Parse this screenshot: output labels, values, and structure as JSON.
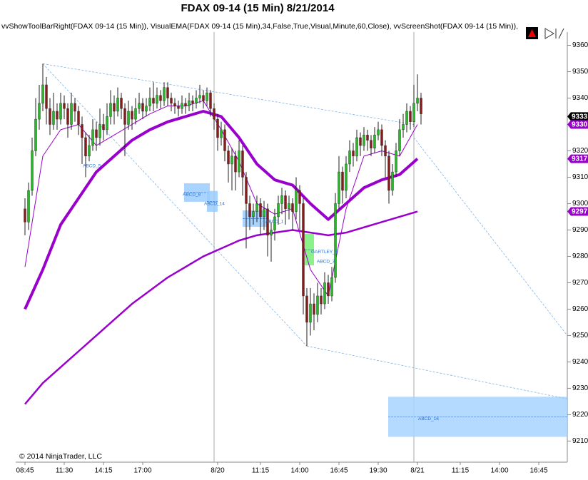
{
  "chart_data": {
    "type": "candlestick",
    "title": "FDAX 09-14 (15 Min)  8/21/2014",
    "subtitle": "vvShowToolBarRight(FDAX 09-14 (15 Min)), VisualEMA(FDAX 09-14 (15 Min),34,False,True,Visual,Minute,60,Close), vvScreenShot(FDAX 09-14 (15 Min)),",
    "footer": "© 2014 NinjaTrader, LLC",
    "up_color": "#22bb22",
    "down_color": "#8b1a1a",
    "xlim": [
      -2.6,
      152
    ],
    "ylim": [
      9202,
      9365
    ],
    "yticks": [
      9210,
      9220,
      9230,
      9240,
      9250,
      9260,
      9270,
      9280,
      9290,
      9300,
      9310,
      9320,
      9330,
      9340,
      9350,
      9360
    ],
    "xticks": [
      {
        "value": 0,
        "label": "08:45"
      },
      {
        "value": 11,
        "label": "11:30"
      },
      {
        "value": 22,
        "label": "14:15"
      },
      {
        "value": 33,
        "label": "17:00"
      },
      {
        "value": 54,
        "label": "8/20"
      },
      {
        "value": 66,
        "label": "11:15"
      },
      {
        "value": 77,
        "label": "14:00"
      },
      {
        "value": 88,
        "label": "16:45"
      },
      {
        "value": 99,
        "label": "19:30"
      },
      {
        "value": 110,
        "label": "8/21"
      },
      {
        "value": 122,
        "label": "11:15"
      },
      {
        "value": 133,
        "label": "14:00"
      },
      {
        "value": 144,
        "label": "16:45"
      }
    ],
    "session_breaks": [
      53,
      109
    ],
    "ohlc": [
      [
        9298,
        9302,
        9288,
        9293
      ],
      [
        9293,
        9308,
        9290,
        9305
      ],
      [
        9305,
        9325,
        9303,
        9320
      ],
      [
        9320,
        9340,
        9318,
        9332
      ],
      [
        9332,
        9345,
        9328,
        9338
      ],
      [
        9338,
        9353,
        9335,
        9345
      ],
      [
        9345,
        9348,
        9330,
        9336
      ],
      [
        9336,
        9340,
        9326,
        9330
      ],
      [
        9330,
        9342,
        9328,
        9335
      ],
      [
        9335,
        9338,
        9328,
        9332
      ],
      [
        9332,
        9342,
        9330,
        9338
      ],
      [
        9338,
        9341,
        9332,
        9336
      ],
      [
        9336,
        9338,
        9325,
        9330
      ],
      [
        9330,
        9342,
        9328,
        9338
      ],
      [
        9338,
        9340,
        9331,
        9335
      ],
      [
        9335,
        9337,
        9326,
        9330
      ],
      [
        9330,
        9333,
        9315,
        9325
      ],
      [
        9325,
        9327,
        9310,
        9318
      ],
      [
        9318,
        9326,
        9316,
        9322
      ],
      [
        9322,
        9332,
        9320,
        9328
      ],
      [
        9328,
        9331,
        9320,
        9325
      ],
      [
        9325,
        9336,
        9322,
        9330
      ],
      [
        9330,
        9334,
        9324,
        9328
      ],
      [
        9328,
        9338,
        9326,
        9333
      ],
      [
        9333,
        9343,
        9330,
        9338
      ],
      [
        9338,
        9341,
        9330,
        9335
      ],
      [
        9335,
        9344,
        9333,
        9340
      ],
      [
        9340,
        9342,
        9332,
        9336
      ],
      [
        9336,
        9338,
        9318,
        9330
      ],
      [
        9330,
        9339,
        9328,
        9335
      ],
      [
        9335,
        9337,
        9328,
        9332
      ],
      [
        9332,
        9340,
        9330,
        9336
      ],
      [
        9336,
        9342,
        9334,
        9338
      ],
      [
        9338,
        9340,
        9332,
        9335
      ],
      [
        9335,
        9340,
        9333,
        9337
      ],
      [
        9337,
        9344,
        9335,
        9340
      ],
      [
        9340,
        9346,
        9335,
        9338
      ],
      [
        9338,
        9344,
        9336,
        9341
      ],
      [
        9341,
        9343,
        9336,
        9339
      ],
      [
        9339,
        9346,
        9337,
        9344
      ],
      [
        9344,
        9346,
        9337,
        9340
      ],
      [
        9340,
        9342,
        9335,
        9338
      ],
      [
        9338,
        9340,
        9334,
        9337
      ],
      [
        9337,
        9339,
        9333,
        9336
      ],
      [
        9336,
        9341,
        9334,
        9338
      ],
      [
        9338,
        9340,
        9334,
        9337
      ],
      [
        9337,
        9342,
        9335,
        9339
      ],
      [
        9339,
        9341,
        9335,
        9338
      ],
      [
        9338,
        9343,
        9336,
        9340
      ],
      [
        9340,
        9345,
        9338,
        9341
      ],
      [
        9341,
        9343,
        9336,
        9339
      ],
      [
        9339,
        9344,
        9337,
        9342
      ],
      [
        9342,
        9343,
        9333,
        9336
      ],
      [
        9336,
        9338,
        9328,
        9332
      ],
      [
        9332,
        9334,
        9320,
        9325
      ],
      [
        9325,
        9331,
        9322,
        9328
      ],
      [
        9328,
        9330,
        9316,
        9320
      ],
      [
        9320,
        9322,
        9308,
        9315
      ],
      [
        9315,
        9321,
        9305,
        9318
      ],
      [
        9318,
        9320,
        9305,
        9312
      ],
      [
        9312,
        9324,
        9310,
        9320
      ],
      [
        9320,
        9322,
        9303,
        9310
      ],
      [
        9310,
        9312,
        9283,
        9300
      ],
      [
        9300,
        9303,
        9290,
        9295
      ],
      [
        9295,
        9300,
        9292,
        9297
      ],
      [
        9297,
        9303,
        9293,
        9300
      ],
      [
        9300,
        9302,
        9288,
        9295
      ],
      [
        9295,
        9301,
        9290,
        9298
      ],
      [
        9298,
        9300,
        9280,
        9288
      ],
      [
        9288,
        9293,
        9278,
        9290
      ],
      [
        9290,
        9298,
        9286,
        9295
      ],
      [
        9295,
        9303,
        9292,
        9300
      ],
      [
        9300,
        9306,
        9296,
        9303
      ],
      [
        9303,
        9305,
        9292,
        9298
      ],
      [
        9298,
        9303,
        9294,
        9300
      ],
      [
        9300,
        9302,
        9290,
        9297
      ],
      [
        9297,
        9310,
        9294,
        9305
      ],
      [
        9305,
        9307,
        9290,
        9300
      ],
      [
        9300,
        9302,
        9258,
        9265
      ],
      [
        9265,
        9268,
        9246,
        9255
      ],
      [
        9255,
        9268,
        9250,
        9262
      ],
      [
        9262,
        9266,
        9252,
        9258
      ],
      [
        9258,
        9270,
        9255,
        9265
      ],
      [
        9265,
        9268,
        9258,
        9262
      ],
      [
        9262,
        9274,
        9260,
        9270
      ],
      [
        9270,
        9273,
        9262,
        9265
      ],
      [
        9265,
        9276,
        9263,
        9272
      ],
      [
        9272,
        9304,
        9270,
        9300
      ],
      [
        9300,
        9318,
        9298,
        9312
      ],
      [
        9312,
        9314,
        9300,
        9305
      ],
      [
        9305,
        9318,
        9302,
        9315
      ],
      [
        9315,
        9324,
        9312,
        9320
      ],
      [
        9320,
        9323,
        9314,
        9318
      ],
      [
        9318,
        9328,
        9316,
        9325
      ],
      [
        9325,
        9327,
        9318,
        9322
      ],
      [
        9322,
        9329,
        9320,
        9326
      ],
      [
        9326,
        9328,
        9320,
        9324
      ],
      [
        9324,
        9326,
        9318,
        9321
      ],
      [
        9321,
        9329,
        9319,
        9326
      ],
      [
        9326,
        9331,
        9324,
        9328
      ],
      [
        9328,
        9330,
        9318,
        9322
      ],
      [
        9322,
        9324,
        9310,
        9318
      ],
      [
        9318,
        9320,
        9300,
        9305
      ],
      [
        9305,
        9315,
        9303,
        9312
      ],
      [
        9312,
        9323,
        9310,
        9320
      ],
      [
        9320,
        9332,
        9318,
        9328
      ],
      [
        9328,
        9334,
        9325,
        9330
      ],
      [
        9330,
        9338,
        9327,
        9335
      ],
      [
        9335,
        9337,
        9328,
        9331
      ],
      [
        9331,
        9345,
        9329,
        9338
      ],
      [
        9338,
        9349,
        9335,
        9340
      ],
      [
        9340,
        9342,
        9330,
        9334
      ]
    ],
    "lines": [
      {
        "color": "#9900cc",
        "width": 4,
        "x": [
          0,
          5,
          10,
          15,
          20,
          25,
          30,
          35,
          40,
          45,
          50,
          55,
          60,
          65,
          70,
          75,
          80,
          85,
          90,
          95,
          100,
          105,
          110
        ],
        "values": [
          9260,
          9275,
          9292,
          9302,
          9312,
          9318,
          9324,
          9328,
          9331,
          9333,
          9335,
          9333,
          9325,
          9315,
          9309,
          9307,
          9300,
          9294,
          9300,
          9306,
          9309,
          9311,
          9317
        ]
      },
      {
        "color": "#9900cc",
        "width": 2.5,
        "x": [
          0,
          5,
          10,
          15,
          20,
          25,
          30,
          35,
          40,
          45,
          50,
          55,
          60,
          65,
          70,
          75,
          80,
          85,
          90,
          95,
          100,
          105,
          110
        ],
        "values": [
          9224,
          9232,
          9238,
          9244,
          9250,
          9256,
          9262,
          9267,
          9272,
          9276,
          9280,
          9283,
          9286,
          9288,
          9289,
          9290,
          9289,
          9288,
          9289,
          9291,
          9293,
          9295,
          9297
        ]
      },
      {
        "color": "#9900cc",
        "width": 1,
        "x": [
          0,
          5,
          10,
          15,
          20,
          25,
          30,
          35,
          40,
          45,
          50,
          55,
          60,
          65,
          70,
          75,
          80,
          85,
          90,
          95,
          100,
          105,
          110
        ],
        "values": [
          9276,
          9318,
          9328,
          9330,
          9322,
          9326,
          9330,
          9334,
          9337,
          9337,
          9339,
          9328,
          9316,
          9300,
          9296,
          9298,
          9275,
          9265,
          9298,
          9318,
          9320,
          9318,
          9330
        ]
      }
    ],
    "trend_lines": [
      [
        [
          5,
          9353
        ],
        [
          79,
          9246
        ]
      ],
      [
        [
          5,
          9353
        ],
        [
          109,
          9330
        ]
      ],
      [
        [
          79,
          9246
        ],
        [
          152,
          9226
        ]
      ],
      [
        [
          109,
          9325
        ],
        [
          152,
          9250
        ]
      ]
    ],
    "boxes": [
      {
        "x": [
          44.6,
          51.8
        ],
        "y": [
          9300.7,
          9307.7
        ],
        "color": "#99ccff"
      },
      {
        "x": [
          51,
          54
        ],
        "y": [
          9296.9,
          9304.8
        ],
        "color": "#99ccff"
      },
      {
        "x": [
          61,
          68
        ],
        "y": [
          9291.2,
          9297.4
        ],
        "color": "#99ccff"
      },
      {
        "x": [
          78.4,
          81
        ],
        "y": [
          9276.6,
          9288.5
        ],
        "color": "#77ee77"
      },
      {
        "x": [
          101.8,
          152
        ],
        "y": [
          9211.6,
          9226.8
        ],
        "color": "#a8d4ff"
      }
    ],
    "annotations": [
      {
        "text": "ABCD_5",
        "x": 16.2,
        "y": 9314.2
      },
      {
        "text": "ABCD_8",
        "x": 44.2,
        "y": 9303.4
      },
      {
        "text": "ABCD_14",
        "x": 50.2,
        "y": 9299.9
      },
      {
        "text": "ABCD_1",
        "x": 67.4,
        "y": 9293.1
      },
      {
        "text": "GARTLEY_5",
        "x": 80.2,
        "y": 9281.7
      },
      {
        "text": "ABCD_3",
        "x": 81.8,
        "y": 9278
      },
      {
        "text": "ABCD_16",
        "x": 110.2,
        "y": 9218.4
      }
    ],
    "price_markers": [
      {
        "value": 9333,
        "color": "#000000"
      },
      {
        "value": 9330,
        "color": "#9900cc"
      },
      {
        "value": 9317,
        "color": "#9900cc"
      },
      {
        "value": 9297,
        "color": "#9900cc"
      }
    ]
  }
}
